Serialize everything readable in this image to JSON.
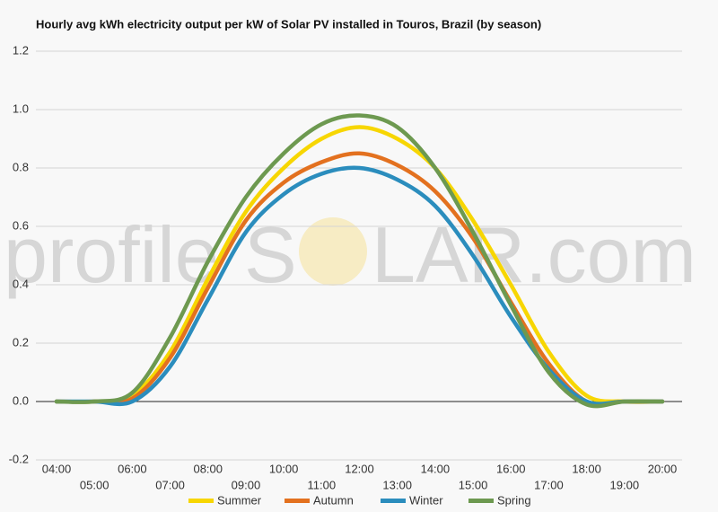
{
  "chart_data": {
    "type": "line",
    "title": "Hourly avg kWh electricity output per kW of Solar PV installed in Touros, Brazil (by season)",
    "watermark": [
      "profile",
      "S",
      "LAR.com"
    ],
    "categories": [
      "04:00",
      "05:00",
      "06:00",
      "07:00",
      "08:00",
      "09:00",
      "10:00",
      "11:00",
      "12:00",
      "13:00",
      "14:00",
      "15:00",
      "16:00",
      "17:00",
      "18:00",
      "19:00",
      "20:00"
    ],
    "series": [
      {
        "name": "Summer",
        "color": "#f7d602",
        "values": [
          0,
          0,
          0.02,
          0.17,
          0.42,
          0.65,
          0.8,
          0.9,
          0.94,
          0.9,
          0.8,
          0.62,
          0.4,
          0.17,
          0.02,
          0,
          0
        ]
      },
      {
        "name": "Autumn",
        "color": "#e3711f",
        "values": [
          0,
          0,
          0.01,
          0.15,
          0.39,
          0.62,
          0.75,
          0.82,
          0.85,
          0.81,
          0.72,
          0.56,
          0.34,
          0.13,
          0,
          0,
          0
        ]
      },
      {
        "name": "Winter",
        "color": "#2b8dbd",
        "values": [
          0,
          0,
          0,
          0.12,
          0.35,
          0.58,
          0.71,
          0.78,
          0.8,
          0.76,
          0.67,
          0.5,
          0.29,
          0.11,
          0,
          0,
          0
        ]
      },
      {
        "name": "Spring",
        "color": "#6d9950",
        "values": [
          0,
          0,
          0.03,
          0.22,
          0.48,
          0.7,
          0.85,
          0.95,
          0.98,
          0.94,
          0.8,
          0.58,
          0.33,
          0.1,
          -0.01,
          0,
          0
        ]
      }
    ],
    "ylim": [
      -0.2,
      1.2
    ],
    "yticks": [
      -0.2,
      {
        "value": 0,
        "label": "0.0"
      },
      0.2,
      0.4,
      0.6,
      0.8,
      {
        "value": 1,
        "label": "1.0"
      },
      1.2
    ],
    "grid": true
  }
}
